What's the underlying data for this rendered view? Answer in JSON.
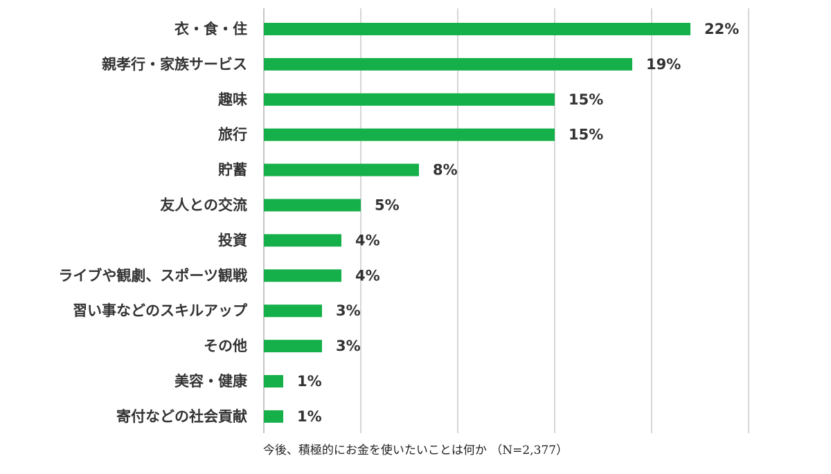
{
  "chart_data": {
    "type": "bar",
    "orientation": "horizontal",
    "categories": [
      "衣・食・住",
      "親孝行・家族サービス",
      "趣味",
      "旅行",
      "貯蓄",
      "友人との交流",
      "投資",
      "ライブや観劇、スポーツ観戦",
      "習い事などのスキルアップ",
      "その他",
      "美容・健康",
      "寄付などの社会貢献"
    ],
    "values": [
      22,
      19,
      15,
      15,
      8,
      5,
      4,
      4,
      3,
      3,
      1,
      1
    ],
    "value_labels": [
      "22%",
      "19%",
      "15%",
      "15%",
      "8%",
      "5%",
      "4%",
      "4%",
      "3%",
      "3%",
      "1%",
      "1%"
    ],
    "unit": "%",
    "xlim": [
      0,
      25
    ],
    "grid": true,
    "legend": "none",
    "bar_color": "#16b04a",
    "caption": "今後、積極的にお金を使いたいことは何か （N=2,377）"
  }
}
